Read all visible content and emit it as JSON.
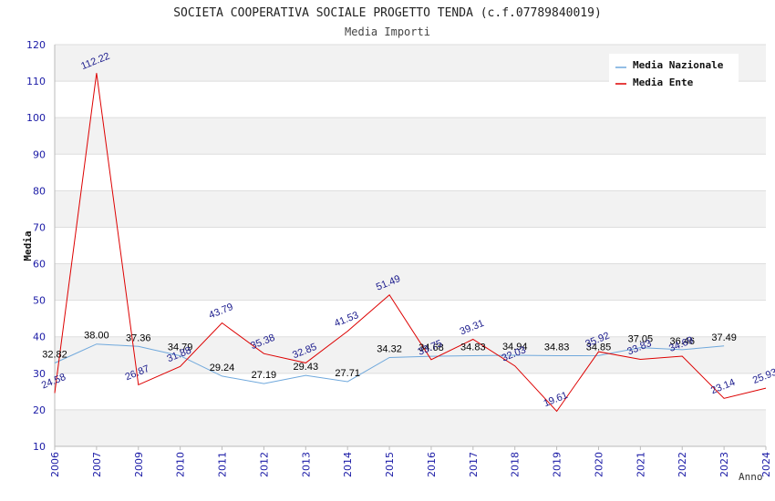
{
  "chart_data": {
    "type": "line",
    "title": "SOCIETA COOPERATIVA SOCIALE PROGETTO TENDA (c.f.07789840019)",
    "subtitle": "Media Importi",
    "xlabel": "Anno",
    "ylabel": "Media",
    "ylim": [
      10,
      120
    ],
    "yticks": [
      "10",
      "20",
      "30",
      "40",
      "50",
      "60",
      "70",
      "80",
      "90",
      "100",
      "110",
      "120"
    ],
    "categories": [
      "2006",
      "2007",
      "2009",
      "2010",
      "2011",
      "2012",
      "2013",
      "2014",
      "2015",
      "2016",
      "2017",
      "2018",
      "2019",
      "2020",
      "2021",
      "2022",
      "2023",
      "2024"
    ],
    "grid": true,
    "legend_position": "top-right",
    "series": [
      {
        "name": "Media Nazionale",
        "color": "#6fa8dc",
        "label_color": "#000000",
        "values": [
          32.82,
          38.0,
          37.36,
          34.79,
          29.24,
          27.19,
          29.43,
          27.71,
          34.32,
          34.68,
          34.83,
          34.94,
          34.83,
          34.85,
          37.05,
          36.46,
          37.49,
          null
        ],
        "labels": [
          "32.82",
          "38.00",
          "37.36",
          "34.79",
          "29.24",
          "27.19",
          "29.43",
          "27.71",
          "34.32",
          "34.68",
          "34.83",
          "34.94",
          "34.83",
          "34.85",
          "37.05",
          "36.46",
          "37.49",
          ""
        ]
      },
      {
        "name": "Media Ente",
        "color": "#dd0000",
        "label_color": "#1a1a8c",
        "values": [
          24.58,
          112.22,
          26.87,
          31.88,
          43.79,
          35.38,
          32.85,
          41.53,
          51.49,
          33.75,
          39.31,
          32.03,
          19.61,
          35.92,
          33.83,
          34.69,
          23.14,
          25.93
        ],
        "labels": [
          "24.58",
          "112.22",
          "26.87",
          "31.88",
          "43.79",
          "35.38",
          "32.85",
          "41.53",
          "51.49",
          "33.75",
          "39.31",
          "32.03",
          "19.61",
          "35.92",
          "33.83",
          "34.69",
          "23.14",
          "25.93"
        ]
      }
    ]
  }
}
